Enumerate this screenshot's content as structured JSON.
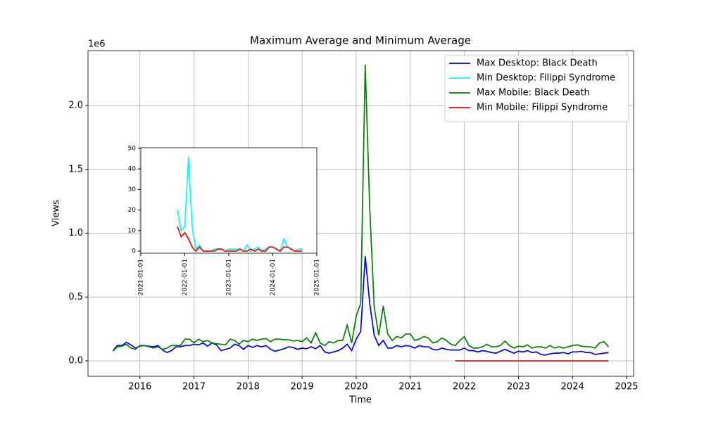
{
  "chart_data": [
    {
      "type": "line",
      "title": "Maximum Average and Minimum Average",
      "x_label": "Time",
      "y_label": "Views",
      "y_offset_text": "1e6",
      "grid": true,
      "legend": "upper right",
      "x": [
        "2015-07",
        "2015-08",
        "2015-09",
        "2015-10",
        "2015-11",
        "2015-12",
        "2016-01",
        "2016-02",
        "2016-03",
        "2016-04",
        "2016-05",
        "2016-06",
        "2016-07",
        "2016-08",
        "2016-09",
        "2016-10",
        "2016-11",
        "2016-12",
        "2017-01",
        "2017-02",
        "2017-03",
        "2017-04",
        "2017-05",
        "2017-06",
        "2017-07",
        "2017-08",
        "2017-09",
        "2017-10",
        "2017-11",
        "2017-12",
        "2018-01",
        "2018-02",
        "2018-03",
        "2018-04",
        "2018-05",
        "2018-06",
        "2018-07",
        "2018-08",
        "2018-09",
        "2018-10",
        "2018-11",
        "2018-12",
        "2019-01",
        "2019-02",
        "2019-03",
        "2019-04",
        "2019-05",
        "2019-06",
        "2019-07",
        "2019-08",
        "2019-09",
        "2019-10",
        "2019-11",
        "2019-12",
        "2020-01",
        "2020-02",
        "2020-03",
        "2020-04",
        "2020-05",
        "2020-06",
        "2020-07",
        "2020-08",
        "2020-09",
        "2020-10",
        "2020-11",
        "2020-12",
        "2021-01",
        "2021-02",
        "2021-03",
        "2021-04",
        "2021-05",
        "2021-06",
        "2021-07",
        "2021-08",
        "2021-09",
        "2021-10",
        "2021-11",
        "2021-12",
        "2022-01",
        "2022-02",
        "2022-03",
        "2022-04",
        "2022-05",
        "2022-06",
        "2022-07",
        "2022-08",
        "2022-09",
        "2022-10",
        "2022-11",
        "2022-12",
        "2023-01",
        "2023-02",
        "2023-03",
        "2023-04",
        "2023-05",
        "2023-06",
        "2023-07",
        "2023-08",
        "2023-09",
        "2023-10",
        "2023-11",
        "2023-12",
        "2024-01",
        "2024-02",
        "2024-03",
        "2024-04",
        "2024-05",
        "2024-06",
        "2024-07",
        "2024-08",
        "2024-09"
      ],
      "series": [
        {
          "name": "Max Desktop: Black Death",
          "color": "#0000ff",
          "values": [
            80000,
            120000,
            120000,
            145000,
            125000,
            100000,
            115000,
            120000,
            115000,
            110000,
            120000,
            85000,
            65000,
            80000,
            110000,
            110000,
            120000,
            120000,
            130000,
            125000,
            140000,
            115000,
            140000,
            125000,
            80000,
            90000,
            100000,
            130000,
            120000,
            90000,
            120000,
            105000,
            120000,
            110000,
            120000,
            90000,
            75000,
            85000,
            95000,
            110000,
            105000,
            90000,
            100000,
            95000,
            110000,
            95000,
            120000,
            70000,
            60000,
            70000,
            80000,
            100000,
            130000,
            80000,
            170000,
            230000,
            820000,
            450000,
            200000,
            120000,
            160000,
            100000,
            100000,
            120000,
            110000,
            120000,
            115000,
            100000,
            120000,
            110000,
            110000,
            90000,
            85000,
            100000,
            90000,
            85000,
            85000,
            85000,
            100000,
            80000,
            80000,
            70000,
            80000,
            75000,
            65000,
            60000,
            75000,
            90000,
            75000,
            60000,
            75000,
            70000,
            80000,
            65000,
            70000,
            50000,
            45000,
            55000,
            60000,
            60000,
            65000,
            55000,
            70000,
            70000,
            75000,
            65000,
            65000,
            50000,
            55000,
            60000,
            65000
          ]
        },
        {
          "name": "Min Desktop: Filippi Syndrome",
          "color": "#00ffff",
          "values": [
            null,
            null,
            null,
            null,
            null,
            null,
            null,
            null,
            null,
            null,
            null,
            null,
            null,
            null,
            null,
            null,
            null,
            null,
            null,
            null,
            null,
            null,
            null,
            null,
            null,
            null,
            null,
            null,
            null,
            null,
            null,
            null,
            null,
            null,
            null,
            null,
            null,
            null,
            null,
            null,
            null,
            null,
            null,
            null,
            null,
            null,
            null,
            null,
            null,
            null,
            null,
            null,
            null,
            null,
            null,
            null,
            null,
            null,
            null,
            null,
            null,
            null,
            null,
            null,
            null,
            null,
            null,
            null,
            null,
            null,
            null,
            null,
            null,
            null,
            null,
            null,
            20,
            10,
            12,
            46,
            12,
            1,
            3,
            0,
            0,
            0,
            1,
            1,
            1,
            0,
            1,
            1,
            1,
            1,
            0,
            3,
            0,
            1,
            2,
            0,
            1,
            2,
            2,
            1,
            0,
            6,
            2,
            1,
            0,
            1,
            1
          ]
        },
        {
          "name": "Max Mobile: Black Death",
          "color": "#008000",
          "values": [
            75000,
            110000,
            115000,
            130000,
            100000,
            90000,
            120000,
            120000,
            110000,
            100000,
            110000,
            90000,
            100000,
            120000,
            120000,
            120000,
            170000,
            170000,
            140000,
            170000,
            150000,
            160000,
            140000,
            135000,
            130000,
            125000,
            170000,
            160000,
            130000,
            160000,
            150000,
            170000,
            160000,
            170000,
            175000,
            150000,
            170000,
            170000,
            165000,
            165000,
            155000,
            160000,
            150000,
            180000,
            140000,
            220000,
            140000,
            120000,
            150000,
            140000,
            160000,
            160000,
            280000,
            140000,
            350000,
            450000,
            2320000,
            1200000,
            420000,
            200000,
            430000,
            210000,
            160000,
            190000,
            180000,
            210000,
            210000,
            160000,
            170000,
            190000,
            180000,
            140000,
            150000,
            180000,
            160000,
            130000,
            120000,
            160000,
            190000,
            120000,
            100000,
            100000,
            110000,
            130000,
            110000,
            110000,
            120000,
            155000,
            120000,
            100000,
            115000,
            110000,
            125000,
            100000,
            110000,
            110000,
            100000,
            120000,
            100000,
            110000,
            100000,
            110000,
            120000,
            125000,
            115000,
            110000,
            110000,
            100000,
            140000,
            150000,
            110000
          ]
        },
        {
          "name": "Min Mobile: Filippi Syndrome",
          "color": "#ff0000",
          "values": [
            null,
            null,
            null,
            null,
            null,
            null,
            null,
            null,
            null,
            null,
            null,
            null,
            null,
            null,
            null,
            null,
            null,
            null,
            null,
            null,
            null,
            null,
            null,
            null,
            null,
            null,
            null,
            null,
            null,
            null,
            null,
            null,
            null,
            null,
            null,
            null,
            null,
            null,
            null,
            null,
            null,
            null,
            null,
            null,
            null,
            null,
            null,
            null,
            null,
            null,
            null,
            null,
            null,
            null,
            null,
            null,
            null,
            null,
            null,
            null,
            null,
            null,
            null,
            null,
            null,
            null,
            null,
            null,
            null,
            null,
            null,
            null,
            null,
            null,
            null,
            null,
            12,
            7,
            9,
            6,
            2,
            0,
            2,
            0,
            0,
            0,
            0,
            1,
            1,
            0,
            0,
            0,
            0,
            1,
            0,
            0,
            1,
            0,
            1,
            0,
            0,
            2,
            2,
            1,
            0,
            2,
            2,
            1,
            0,
            0,
            0
          ]
        }
      ],
      "xlim": [
        2015.04,
        2025.13
      ],
      "xticks": [
        2016,
        2017,
        2018,
        2019,
        2020,
        2021,
        2022,
        2023,
        2024,
        2025
      ],
      "ylim": [
        -121000,
        2430000
      ],
      "yticks": [
        {
          "value": 0,
          "label": "0.0"
        },
        {
          "value": 500000,
          "label": "0.5"
        },
        {
          "value": 1000000,
          "label": "1.0"
        },
        {
          "value": 1500000,
          "label": "1.5"
        },
        {
          "value": 2000000,
          "label": "2.0"
        }
      ]
    },
    {
      "type": "line",
      "grid": false,
      "x": [
        "2021-11",
        "2021-12",
        "2022-01",
        "2022-02",
        "2022-03",
        "2022-04",
        "2022-05",
        "2022-06",
        "2022-07",
        "2022-08",
        "2022-09",
        "2022-10",
        "2022-11",
        "2022-12",
        "2023-01",
        "2023-02",
        "2023-03",
        "2023-04",
        "2023-05",
        "2023-06",
        "2023-07",
        "2023-08",
        "2023-09",
        "2023-10",
        "2023-11",
        "2023-12",
        "2024-01",
        "2024-02",
        "2024-03",
        "2024-04",
        "2024-05",
        "2024-06",
        "2024-07",
        "2024-08",
        "2024-09"
      ],
      "series": [
        {
          "color": "#00ffff",
          "values": [
            20,
            10,
            12,
            46,
            12,
            1,
            3,
            0,
            0,
            0,
            1,
            1,
            1,
            0,
            1,
            1,
            1,
            1,
            0,
            3,
            0,
            1,
            2,
            0,
            1,
            2,
            2,
            1,
            0,
            6,
            2,
            1,
            0,
            1,
            1
          ]
        },
        {
          "color": "#ff0000",
          "values": [
            12,
            7,
            9,
            6,
            2,
            0,
            2,
            0,
            0,
            0,
            0,
            1,
            1,
            0,
            0,
            0,
            0,
            1,
            0,
            0,
            1,
            0,
            1,
            0,
            0,
            2,
            2,
            1,
            0,
            2,
            2,
            1,
            0,
            0,
            0
          ]
        }
      ],
      "xlim": [
        "2021-01-01",
        "2025-01-01"
      ],
      "xticks": [
        "2021-01-01",
        "2022-01-01",
        "2023-01-01",
        "2024-01-01",
        "2025-01-01"
      ],
      "ylim": [
        -1,
        50.3
      ],
      "yticks": [
        0,
        10,
        20,
        30,
        40,
        50
      ]
    }
  ]
}
